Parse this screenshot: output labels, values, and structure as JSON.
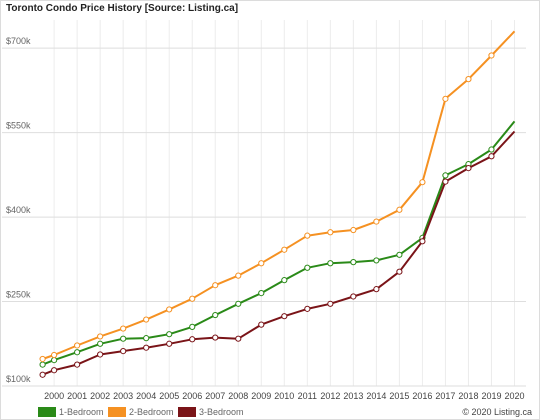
{
  "chart_data": {
    "type": "line",
    "title": "Toronto Condo Price History [Source: Listing.ca]",
    "credit": "© 2020 Listing.ca",
    "xlabel": "",
    "ylabel": "",
    "x_ticks": [
      "2000",
      "2001",
      "2002",
      "2003",
      "2004",
      "2005",
      "2006",
      "2007",
      "2008",
      "2009",
      "2010",
      "2011",
      "2012",
      "2013",
      "2014",
      "2015",
      "2016",
      "2017",
      "2018",
      "2019",
      "2020"
    ],
    "xlim": [
      1999.3,
      2020.5
    ],
    "ylim": [
      100000,
      750000
    ],
    "y_ticks": [
      {
        "value": 100000,
        "label": "$100k"
      },
      {
        "value": 250000,
        "label": "$250k"
      },
      {
        "value": 400000,
        "label": "$400k"
      },
      {
        "value": 550000,
        "label": "$550k"
      },
      {
        "value": 700000,
        "label": "$700k"
      }
    ],
    "grid": true,
    "legend_position": "bottom-left",
    "series": [
      {
        "name": "1-Bedroom",
        "color": "#2a8a18",
        "x": [
          1999.5,
          2000,
          2001,
          2002,
          2003,
          2004,
          2005,
          2006,
          2007,
          2008,
          2009,
          2010,
          2011,
          2012,
          2013,
          2014,
          2015,
          2016,
          2017,
          2018,
          2019,
          2020
        ],
        "values": [
          138000,
          146000,
          160000,
          175000,
          184000,
          185000,
          192000,
          205000,
          226000,
          246000,
          265000,
          288000,
          310000,
          318000,
          320000,
          323000,
          333000,
          363000,
          474000,
          494000,
          520000,
          570000
        ],
        "markers": [
          1999.5,
          2000,
          2001,
          2002,
          2003,
          2004,
          2005,
          2006,
          2007,
          2008,
          2009,
          2010,
          2011,
          2012,
          2013,
          2014,
          2015,
          2016,
          2017,
          2018,
          2019
        ]
      },
      {
        "name": "2-Bedroom",
        "color": "#f59122",
        "x": [
          1999.5,
          2000,
          2001,
          2002,
          2003,
          2004,
          2005,
          2006,
          2007,
          2008,
          2009,
          2010,
          2011,
          2012,
          2013,
          2014,
          2015,
          2016,
          2017,
          2018,
          2019,
          2020
        ],
        "values": [
          148000,
          155000,
          172000,
          188000,
          202000,
          218000,
          236000,
          255000,
          279000,
          296000,
          318000,
          342000,
          367000,
          373000,
          377000,
          392000,
          413000,
          462000,
          610000,
          645000,
          687000,
          730000
        ],
        "markers": [
          1999.5,
          2000,
          2001,
          2002,
          2003,
          2004,
          2005,
          2006,
          2007,
          2008,
          2009,
          2010,
          2011,
          2012,
          2013,
          2014,
          2015,
          2016,
          2017,
          2018,
          2019
        ]
      },
      {
        "name": "3-Bedroom",
        "color": "#7a1418",
        "x": [
          1999.5,
          2000,
          2001,
          2002,
          2003,
          2004,
          2005,
          2006,
          2007,
          2008,
          2009,
          2010,
          2011,
          2012,
          2013,
          2014,
          2015,
          2016,
          2017,
          2018,
          2019,
          2020
        ],
        "values": [
          120000,
          128000,
          138000,
          156000,
          162000,
          168000,
          175000,
          183000,
          186000,
          184000,
          209000,
          224000,
          237000,
          246000,
          259000,
          272000,
          303000,
          357000,
          463000,
          487000,
          508000,
          552000
        ],
        "markers": [
          1999.5,
          2000,
          2001,
          2002,
          2003,
          2004,
          2005,
          2006,
          2007,
          2008,
          2009,
          2010,
          2011,
          2012,
          2013,
          2014,
          2015,
          2016,
          2017,
          2018,
          2019
        ]
      }
    ]
  }
}
